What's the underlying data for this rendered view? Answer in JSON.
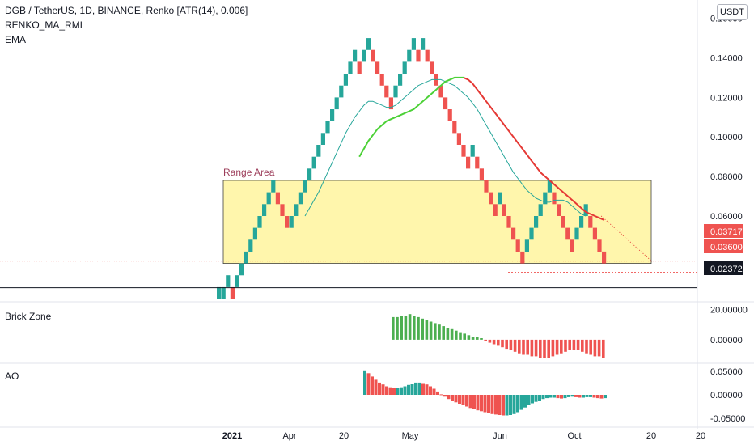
{
  "header": {
    "title": "DGB / TetherUS, 1D, BINANCE, Renko [ATR(14), 0.006]",
    "indicators": [
      "RENKO_MA_RMI",
      "EMA"
    ],
    "unit": "USDT"
  },
  "annotation": {
    "range_label": "Range Area"
  },
  "price_badges": [
    {
      "value": "0.03717",
      "color": "#ef5350",
      "text_color": "#ffffff"
    },
    {
      "value": "0.03600",
      "color": "#ef5350",
      "text_color": "#ffffff"
    },
    {
      "value": "0.02372",
      "color": "#131722",
      "text_color": "#ffffff"
    }
  ],
  "colors": {
    "up": "#26a69a",
    "down": "#ef5350",
    "brick_up": "#4caf50",
    "brick_down": "#ef5350",
    "ma_teal": "#26a69a",
    "ma_green": "#4cd137",
    "ma_red": "#e53935",
    "range_fill": "#fff59d",
    "range_stroke": "#424242",
    "range_label": "#9c3d5a",
    "axis_text": "#131722"
  },
  "chart_data": [
    {
      "type": "renko",
      "ylim": [
        0.017,
        0.166
      ],
      "yticks": [
        "0.16000",
        "0.14000",
        "0.12000",
        "0.10000",
        "0.08000",
        "0.06000"
      ],
      "ytick_values": [
        0.16,
        0.14,
        0.12,
        0.1,
        0.08,
        0.06
      ],
      "xticks": [
        "2021",
        "Apr",
        "20",
        "May",
        "Jun",
        "Oct",
        "20",
        "20"
      ],
      "brick_size": 0.006,
      "range_area": {
        "low": 0.036,
        "high": 0.078
      },
      "horizontal_lines": [
        0.02372,
        0.036
      ],
      "bricks": [
        {
          "dir": "up",
          "open": 0.018,
          "close": 0.024
        },
        {
          "dir": "up",
          "open": 0.018,
          "close": 0.024
        },
        {
          "dir": "up",
          "open": 0.024,
          "close": 0.03
        },
        {
          "dir": "down",
          "open": 0.024,
          "close": 0.018
        },
        {
          "dir": "up",
          "open": 0.024,
          "close": 0.03
        },
        {
          "dir": "up",
          "open": 0.03,
          "close": 0.036
        },
        {
          "dir": "up",
          "open": 0.036,
          "close": 0.042
        },
        {
          "dir": "up",
          "open": 0.042,
          "close": 0.048
        },
        {
          "dir": "up",
          "open": 0.048,
          "close": 0.054
        },
        {
          "dir": "up",
          "open": 0.054,
          "close": 0.06
        },
        {
          "dir": "up",
          "open": 0.06,
          "close": 0.066
        },
        {
          "dir": "up",
          "open": 0.066,
          "close": 0.072
        },
        {
          "dir": "up",
          "open": 0.072,
          "close": 0.078
        },
        {
          "dir": "down",
          "open": 0.072,
          "close": 0.066
        },
        {
          "dir": "down",
          "open": 0.066,
          "close": 0.06
        },
        {
          "dir": "down",
          "open": 0.06,
          "close": 0.054
        },
        {
          "dir": "up",
          "open": 0.054,
          "close": 0.06
        },
        {
          "dir": "up",
          "open": 0.06,
          "close": 0.066
        },
        {
          "dir": "up",
          "open": 0.066,
          "close": 0.072
        },
        {
          "dir": "up",
          "open": 0.072,
          "close": 0.078
        },
        {
          "dir": "up",
          "open": 0.078,
          "close": 0.084
        },
        {
          "dir": "up",
          "open": 0.084,
          "close": 0.09
        },
        {
          "dir": "up",
          "open": 0.09,
          "close": 0.096
        },
        {
          "dir": "up",
          "open": 0.096,
          "close": 0.102
        },
        {
          "dir": "up",
          "open": 0.102,
          "close": 0.108
        },
        {
          "dir": "up",
          "open": 0.108,
          "close": 0.114
        },
        {
          "dir": "up",
          "open": 0.114,
          "close": 0.12
        },
        {
          "dir": "up",
          "open": 0.12,
          "close": 0.126
        },
        {
          "dir": "up",
          "open": 0.126,
          "close": 0.132
        },
        {
          "dir": "up",
          "open": 0.132,
          "close": 0.138
        },
        {
          "dir": "up",
          "open": 0.138,
          "close": 0.144
        },
        {
          "dir": "down",
          "open": 0.138,
          "close": 0.132
        },
        {
          "dir": "up",
          "open": 0.138,
          "close": 0.144
        },
        {
          "dir": "up",
          "open": 0.144,
          "close": 0.15
        },
        {
          "dir": "down",
          "open": 0.144,
          "close": 0.138
        },
        {
          "dir": "down",
          "open": 0.138,
          "close": 0.132
        },
        {
          "dir": "down",
          "open": 0.132,
          "close": 0.126
        },
        {
          "dir": "down",
          "open": 0.126,
          "close": 0.12
        },
        {
          "dir": "down",
          "open": 0.12,
          "close": 0.114
        },
        {
          "dir": "up",
          "open": 0.12,
          "close": 0.126
        },
        {
          "dir": "up",
          "open": 0.126,
          "close": 0.132
        },
        {
          "dir": "up",
          "open": 0.132,
          "close": 0.138
        },
        {
          "dir": "up",
          "open": 0.138,
          "close": 0.144
        },
        {
          "dir": "up",
          "open": 0.144,
          "close": 0.15
        },
        {
          "dir": "down",
          "open": 0.144,
          "close": 0.138
        },
        {
          "dir": "up",
          "open": 0.144,
          "close": 0.15
        },
        {
          "dir": "down",
          "open": 0.144,
          "close": 0.138
        },
        {
          "dir": "down",
          "open": 0.138,
          "close": 0.132
        },
        {
          "dir": "down",
          "open": 0.132,
          "close": 0.126
        },
        {
          "dir": "down",
          "open": 0.126,
          "close": 0.12
        },
        {
          "dir": "down",
          "open": 0.12,
          "close": 0.114
        },
        {
          "dir": "down",
          "open": 0.114,
          "close": 0.108
        },
        {
          "dir": "down",
          "open": 0.108,
          "close": 0.102
        },
        {
          "dir": "down",
          "open": 0.102,
          "close": 0.096
        },
        {
          "dir": "down",
          "open": 0.096,
          "close": 0.09
        },
        {
          "dir": "down",
          "open": 0.09,
          "close": 0.084
        },
        {
          "dir": "up",
          "open": 0.09,
          "close": 0.096
        },
        {
          "dir": "down",
          "open": 0.09,
          "close": 0.084
        },
        {
          "dir": "down",
          "open": 0.084,
          "close": 0.078
        },
        {
          "dir": "down",
          "open": 0.078,
          "close": 0.072
        },
        {
          "dir": "down",
          "open": 0.072,
          "close": 0.066
        },
        {
          "dir": "down",
          "open": 0.066,
          "close": 0.06
        },
        {
          "dir": "up",
          "open": 0.066,
          "close": 0.072
        },
        {
          "dir": "down",
          "open": 0.066,
          "close": 0.06
        },
        {
          "dir": "down",
          "open": 0.06,
          "close": 0.054
        },
        {
          "dir": "down",
          "open": 0.054,
          "close": 0.048
        },
        {
          "dir": "down",
          "open": 0.048,
          "close": 0.042
        },
        {
          "dir": "down",
          "open": 0.042,
          "close": 0.036
        },
        {
          "dir": "up",
          "open": 0.042,
          "close": 0.048
        },
        {
          "dir": "up",
          "open": 0.048,
          "close": 0.054
        },
        {
          "dir": "up",
          "open": 0.054,
          "close": 0.06
        },
        {
          "dir": "up",
          "open": 0.06,
          "close": 0.066
        },
        {
          "dir": "up",
          "open": 0.066,
          "close": 0.072
        },
        {
          "dir": "up",
          "open": 0.072,
          "close": 0.078
        },
        {
          "dir": "down",
          "open": 0.072,
          "close": 0.066
        },
        {
          "dir": "down",
          "open": 0.066,
          "close": 0.06
        },
        {
          "dir": "down",
          "open": 0.06,
          "close": 0.054
        },
        {
          "dir": "down",
          "open": 0.054,
          "close": 0.048
        },
        {
          "dir": "down",
          "open": 0.048,
          "close": 0.042
        },
        {
          "dir": "up",
          "open": 0.048,
          "close": 0.054
        },
        {
          "dir": "up",
          "open": 0.054,
          "close": 0.06
        },
        {
          "dir": "up",
          "open": 0.06,
          "close": 0.066
        },
        {
          "dir": "down",
          "open": 0.06,
          "close": 0.054
        },
        {
          "dir": "down",
          "open": 0.054,
          "close": 0.048
        },
        {
          "dir": "down",
          "open": 0.048,
          "close": 0.042
        },
        {
          "dir": "down",
          "open": 0.042,
          "close": 0.036
        }
      ],
      "ma_teal": [
        0.06,
        0.064,
        0.068,
        0.072,
        0.077,
        0.082,
        0.087,
        0.092,
        0.097,
        0.102,
        0.106,
        0.11,
        0.113,
        0.116,
        0.118,
        0.118,
        0.117,
        0.116,
        0.115,
        0.115,
        0.116,
        0.118,
        0.12,
        0.122,
        0.124,
        0.126,
        0.127,
        0.128,
        0.129,
        0.129,
        0.129,
        0.128,
        0.127,
        0.126,
        0.124,
        0.122,
        0.12,
        0.117,
        0.114,
        0.11,
        0.106,
        0.102,
        0.098,
        0.094,
        0.09,
        0.086,
        0.082,
        0.079,
        0.076,
        0.073,
        0.071,
        0.069,
        0.068,
        0.067,
        0.067,
        0.068,
        0.068,
        0.068,
        0.067,
        0.065,
        0.063,
        0.061,
        0.06
      ],
      "ma_green": [
        0.09,
        0.094,
        0.098,
        0.101,
        0.104,
        0.106,
        0.108,
        0.109,
        0.11,
        0.111,
        0.112,
        0.113,
        0.114,
        0.116,
        0.118,
        0.12,
        0.122,
        0.124,
        0.126,
        0.128,
        0.129,
        0.13,
        0.13,
        0.13
      ],
      "ma_red": [
        0.13,
        0.129,
        0.127,
        0.124,
        0.121,
        0.118,
        0.115,
        0.112,
        0.109,
        0.106,
        0.103,
        0.1,
        0.097,
        0.094,
        0.091,
        0.088,
        0.085,
        0.082,
        0.08,
        0.078,
        0.076,
        0.074,
        0.072,
        0.07,
        0.068,
        0.066,
        0.064,
        0.062,
        0.061,
        0.06,
        0.059,
        0.058
      ]
    },
    {
      "type": "bar",
      "name": "Brick Zone",
      "ylim": [
        -14,
        23
      ],
      "yticks": [
        "20.00000",
        "0.00000"
      ],
      "ytick_values": [
        20,
        0
      ],
      "values": [
        15,
        15,
        16,
        16,
        17,
        16,
        15,
        14,
        13,
        12,
        11,
        10,
        9,
        8,
        7,
        6,
        5,
        4,
        3,
        2,
        2,
        1,
        -1,
        -2,
        -3,
        -4,
        -5,
        -6,
        -7,
        -8,
        -9,
        -10,
        -10,
        -11,
        -11,
        -12,
        -12,
        -12,
        -11,
        -10,
        -9,
        -8,
        -7,
        -7,
        -7,
        -8,
        -9,
        -10,
        -11,
        -11,
        -12
      ]
    },
    {
      "type": "bar",
      "name": "AO",
      "ylim": [
        -0.062,
        0.062
      ],
      "yticks": [
        "0.05000",
        "0.00000",
        "-0.05000"
      ],
      "ytick_values": [
        0.05,
        0,
        -0.05
      ],
      "values": [
        0.052,
        0.046,
        0.039,
        0.032,
        0.026,
        0.022,
        0.018,
        0.016,
        0.015,
        0.015,
        0.016,
        0.018,
        0.021,
        0.024,
        0.026,
        0.026,
        0.025,
        0.022,
        0.018,
        0.013,
        0.007,
        0.001,
        -0.004,
        -0.009,
        -0.013,
        -0.016,
        -0.019,
        -0.022,
        -0.025,
        -0.028,
        -0.031,
        -0.033,
        -0.035,
        -0.037,
        -0.039,
        -0.041,
        -0.042,
        -0.043,
        -0.044,
        -0.044,
        -0.043,
        -0.041,
        -0.037,
        -0.032,
        -0.027,
        -0.022,
        -0.018,
        -0.015,
        -0.012,
        -0.009,
        -0.007,
        -0.006,
        -0.006,
        -0.007,
        -0.008,
        -0.007,
        -0.005,
        -0.004,
        -0.005,
        -0.006,
        -0.006,
        -0.005,
        -0.005,
        -0.006,
        -0.007,
        -0.008,
        -0.007
      ]
    }
  ]
}
